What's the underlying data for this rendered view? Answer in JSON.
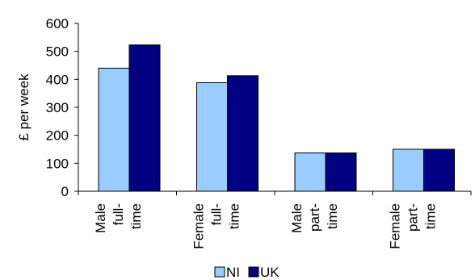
{
  "chart_data": {
    "type": "bar",
    "categories": [
      [
        "Male",
        "full-",
        "time"
      ],
      [
        "Female",
        "full-",
        "time"
      ],
      [
        "Male",
        "part-",
        "time"
      ],
      [
        "Female",
        "part-",
        "time"
      ]
    ],
    "series": [
      {
        "name": "NI",
        "color": "#99ccff",
        "values": [
          440,
          388,
          137,
          150
        ]
      },
      {
        "name": "UK",
        "color": "#000080",
        "values": [
          523,
          413,
          137,
          150
        ]
      }
    ],
    "title": "",
    "xlabel": "",
    "ylabel": "£ per week",
    "ylim": [
      0,
      600
    ],
    "yticks": [
      0,
      100,
      200,
      300,
      400,
      500,
      600
    ],
    "grid": false,
    "legend": "bottom"
  }
}
